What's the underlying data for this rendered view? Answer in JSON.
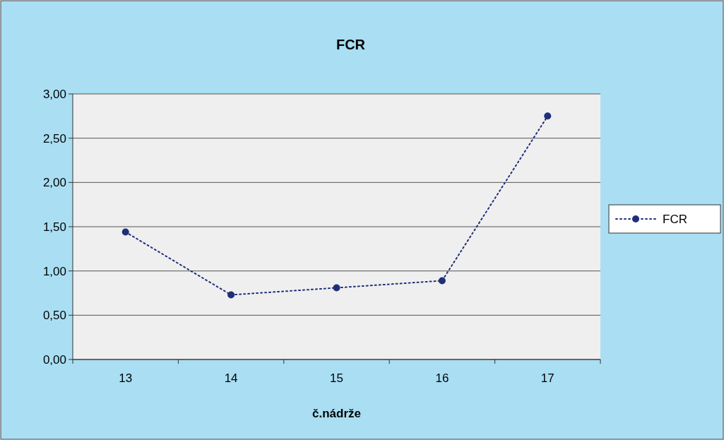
{
  "chart_data": {
    "type": "line",
    "title": "FCR",
    "xlabel": "č.nádrže",
    "categories": [
      "13",
      "14",
      "15",
      "16",
      "17"
    ],
    "series": [
      {
        "name": "FCR",
        "color": "#1f2f7a",
        "values": [
          1.44,
          0.73,
          0.81,
          0.89,
          2.75
        ]
      }
    ],
    "ylim": [
      0,
      3
    ],
    "yticks": [
      {
        "value": 0,
        "label": "0,00"
      },
      {
        "value": 0.5,
        "label": "0,50"
      },
      {
        "value": 1,
        "label": "1,00"
      },
      {
        "value": 1.5,
        "label": "1,50"
      },
      {
        "value": 2,
        "label": "2,00"
      },
      {
        "value": 2.5,
        "label": "2,50"
      },
      {
        "value": 3,
        "label": "3,00"
      }
    ],
    "grid": "y",
    "legend": "right",
    "marker": "circle",
    "line_style": "dotted"
  }
}
